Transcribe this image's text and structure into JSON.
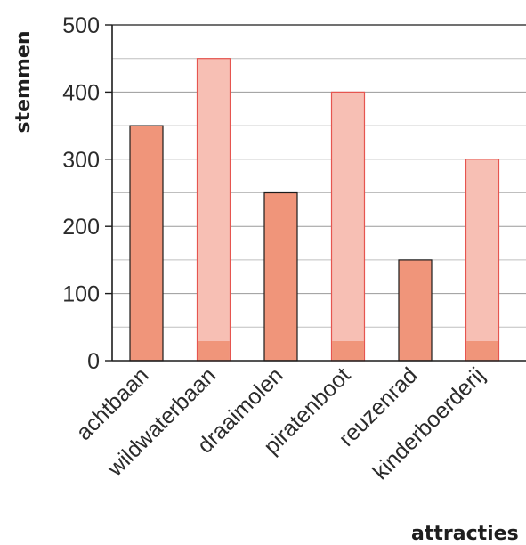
{
  "chart_data": {
    "type": "bar",
    "title": "",
    "xlabel": "attracties",
    "ylabel": "stemmen",
    "categories": [
      "achtbaan",
      "wildwaterbaan",
      "draaimolen",
      "piratenboot",
      "reuzenrad",
      "kinderboerderij"
    ],
    "values": [
      350,
      450,
      250,
      400,
      150,
      300
    ],
    "ylim": [
      0,
      500
    ],
    "yticks": [
      0,
      100,
      200,
      300,
      400,
      500
    ],
    "grid": true,
    "colors": {
      "solid_bar": "#f0957a",
      "light_bar": "#f7bfb4",
      "light_bar_base": "#f0957a",
      "light_bar_edge": "#e6554f",
      "solid_bar_edge": "#1c1c1c",
      "grid": "#bfbfbf",
      "axis": "#1c1c1c"
    },
    "bar_styles": [
      "solid",
      "light",
      "solid",
      "light",
      "solid",
      "light"
    ]
  }
}
